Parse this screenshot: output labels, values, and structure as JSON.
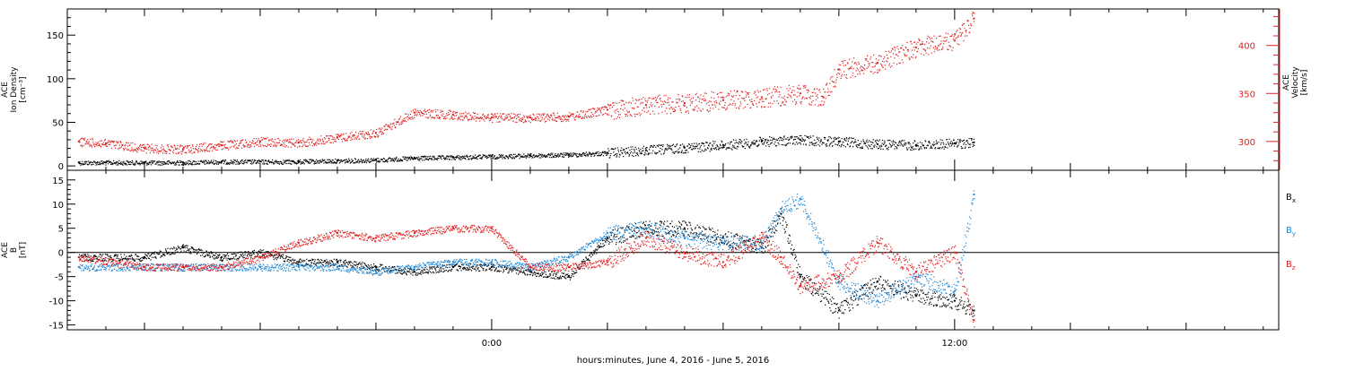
{
  "chart_data": [
    {
      "type": "scatter",
      "panel": "top",
      "ylabel_lines": [
        "ACE",
        "Ion Density",
        "[cm⁻³]"
      ],
      "y2label_lines": [
        "ACE",
        "Velocity",
        "[km/s]"
      ],
      "ylim": [
        -5,
        180
      ],
      "yticks": [
        0,
        50,
        100,
        150
      ],
      "y2lim": [
        270,
        438
      ],
      "y2ticks": [
        300,
        350,
        400
      ],
      "series": [
        {
          "key": "density",
          "axis": "left",
          "color": "#000000",
          "points": [
            [
              -10.7,
              4
            ],
            [
              -10.0,
              4
            ],
            [
              -9.0,
              4
            ],
            [
              -8.0,
              4
            ],
            [
              -7.0,
              5
            ],
            [
              -6.0,
              5
            ],
            [
              -5.0,
              5
            ],
            [
              -4.0,
              6
            ],
            [
              -3.0,
              7
            ],
            [
              -2.0,
              9
            ],
            [
              -1.0,
              10
            ],
            [
              0.0,
              11
            ],
            [
              1.0,
              12
            ],
            [
              2.0,
              13
            ],
            [
              3.0,
              15
            ],
            [
              4.0,
              18
            ],
            [
              5.0,
              21
            ],
            [
              6.0,
              24
            ],
            [
              7.0,
              28
            ],
            [
              8.0,
              30
            ],
            [
              9.0,
              28
            ],
            [
              10.0,
              25
            ],
            [
              11.0,
              24
            ],
            [
              12.0,
              26
            ],
            [
              12.5,
              27
            ]
          ]
        },
        {
          "key": "velocity",
          "axis": "right",
          "color": "#e02020",
          "points": [
            [
              -10.7,
              300
            ],
            [
              -10.0,
              298
            ],
            [
              -9.0,
              293
            ],
            [
              -8.0,
              292
            ],
            [
              -7.0,
              296
            ],
            [
              -6.0,
              300
            ],
            [
              -5.0,
              299
            ],
            [
              -4.0,
              304
            ],
            [
              -3.0,
              309
            ],
            [
              -2.0,
              330
            ],
            [
              -1.0,
              328
            ],
            [
              0.0,
              325
            ],
            [
              1.0,
              325
            ],
            [
              2.0,
              326
            ],
            [
              3.0,
              333
            ],
            [
              4.0,
              338
            ],
            [
              5.0,
              340
            ],
            [
              6.0,
              343
            ],
            [
              7.0,
              346
            ],
            [
              8.0,
              350
            ],
            [
              8.6,
              346
            ],
            [
              9.0,
              375
            ],
            [
              10.0,
              382
            ],
            [
              11.0,
              398
            ],
            [
              12.0,
              405
            ],
            [
              12.5,
              428
            ]
          ]
        }
      ]
    },
    {
      "type": "scatter",
      "panel": "bottom",
      "ylabel_lines": [
        "ACE",
        "B",
        "[nT]"
      ],
      "ylim": [
        -16,
        17
      ],
      "yticks": [
        -15,
        -10,
        -5,
        0,
        5,
        10,
        15
      ],
      "xlim": [
        -11.0,
        20.4
      ],
      "xticks_major": [
        0,
        12
      ],
      "xtick_labels": [
        "0:00",
        "12:00"
      ],
      "xlabel": "hours:minutes, June  4, 2016 - June  5, 2016",
      "series": [
        {
          "key": "bx",
          "name": "B",
          "subscript": "x",
          "color": "#000000",
          "points": [
            [
              -10.7,
              -1
            ],
            [
              -9.0,
              -1
            ],
            [
              -8.0,
              1
            ],
            [
              -7.0,
              -1
            ],
            [
              -6.0,
              0
            ],
            [
              -5.0,
              -2
            ],
            [
              -4.0,
              -2
            ],
            [
              -3.0,
              -3
            ],
            [
              -2.0,
              -4
            ],
            [
              -1.0,
              -3
            ],
            [
              0.0,
              -3
            ],
            [
              1.0,
              -4
            ],
            [
              2.0,
              -5
            ],
            [
              3.0,
              3
            ],
            [
              4.0,
              5
            ],
            [
              5.0,
              5
            ],
            [
              6.0,
              3
            ],
            [
              7.0,
              1
            ],
            [
              7.5,
              8
            ],
            [
              8.0,
              -5
            ],
            [
              9.0,
              -12
            ],
            [
              10.0,
              -6
            ],
            [
              11.0,
              -9
            ],
            [
              12.0,
              -10
            ],
            [
              12.5,
              -12
            ]
          ]
        },
        {
          "key": "by",
          "name": "B",
          "subscript": "y",
          "color": "#1e88d8",
          "points": [
            [
              -10.7,
              -3
            ],
            [
              -9.0,
              -3
            ],
            [
              -8.0,
              -3
            ],
            [
              -7.0,
              -3
            ],
            [
              -6.0,
              -3
            ],
            [
              -5.0,
              -3
            ],
            [
              -4.0,
              -3
            ],
            [
              -3.0,
              -4
            ],
            [
              -2.0,
              -3
            ],
            [
              -1.0,
              -2
            ],
            [
              0.0,
              -2
            ],
            [
              1.0,
              -3
            ],
            [
              2.0,
              -1
            ],
            [
              3.0,
              4
            ],
            [
              4.0,
              5
            ],
            [
              5.0,
              3
            ],
            [
              6.0,
              2
            ],
            [
              7.0,
              2
            ],
            [
              7.5,
              9
            ],
            [
              8.0,
              11
            ],
            [
              9.0,
              -6
            ],
            [
              10.0,
              -10
            ],
            [
              11.0,
              -5
            ],
            [
              12.0,
              -8
            ],
            [
              12.5,
              12
            ]
          ]
        },
        {
          "key": "bz",
          "name": "B",
          "subscript": "z",
          "color": "#e02020",
          "points": [
            [
              -10.7,
              -1
            ],
            [
              -9.0,
              -3
            ],
            [
              -8.0,
              -3
            ],
            [
              -7.0,
              -3
            ],
            [
              -6.0,
              -1
            ],
            [
              -5.0,
              2
            ],
            [
              -4.0,
              4
            ],
            [
              -3.0,
              3
            ],
            [
              -2.0,
              4
            ],
            [
              -1.0,
              5
            ],
            [
              0.0,
              5
            ],
            [
              1.0,
              -3
            ],
            [
              2.0,
              -3
            ],
            [
              3.0,
              -2
            ],
            [
              4.0,
              3
            ],
            [
              5.0,
              0
            ],
            [
              6.0,
              -2
            ],
            [
              7.0,
              3
            ],
            [
              7.5,
              -1
            ],
            [
              8.0,
              -7
            ],
            [
              9.0,
              -5
            ],
            [
              10.0,
              2
            ],
            [
              11.0,
              -4
            ],
            [
              12.0,
              0
            ],
            [
              12.5,
              -14
            ]
          ]
        }
      ]
    }
  ]
}
